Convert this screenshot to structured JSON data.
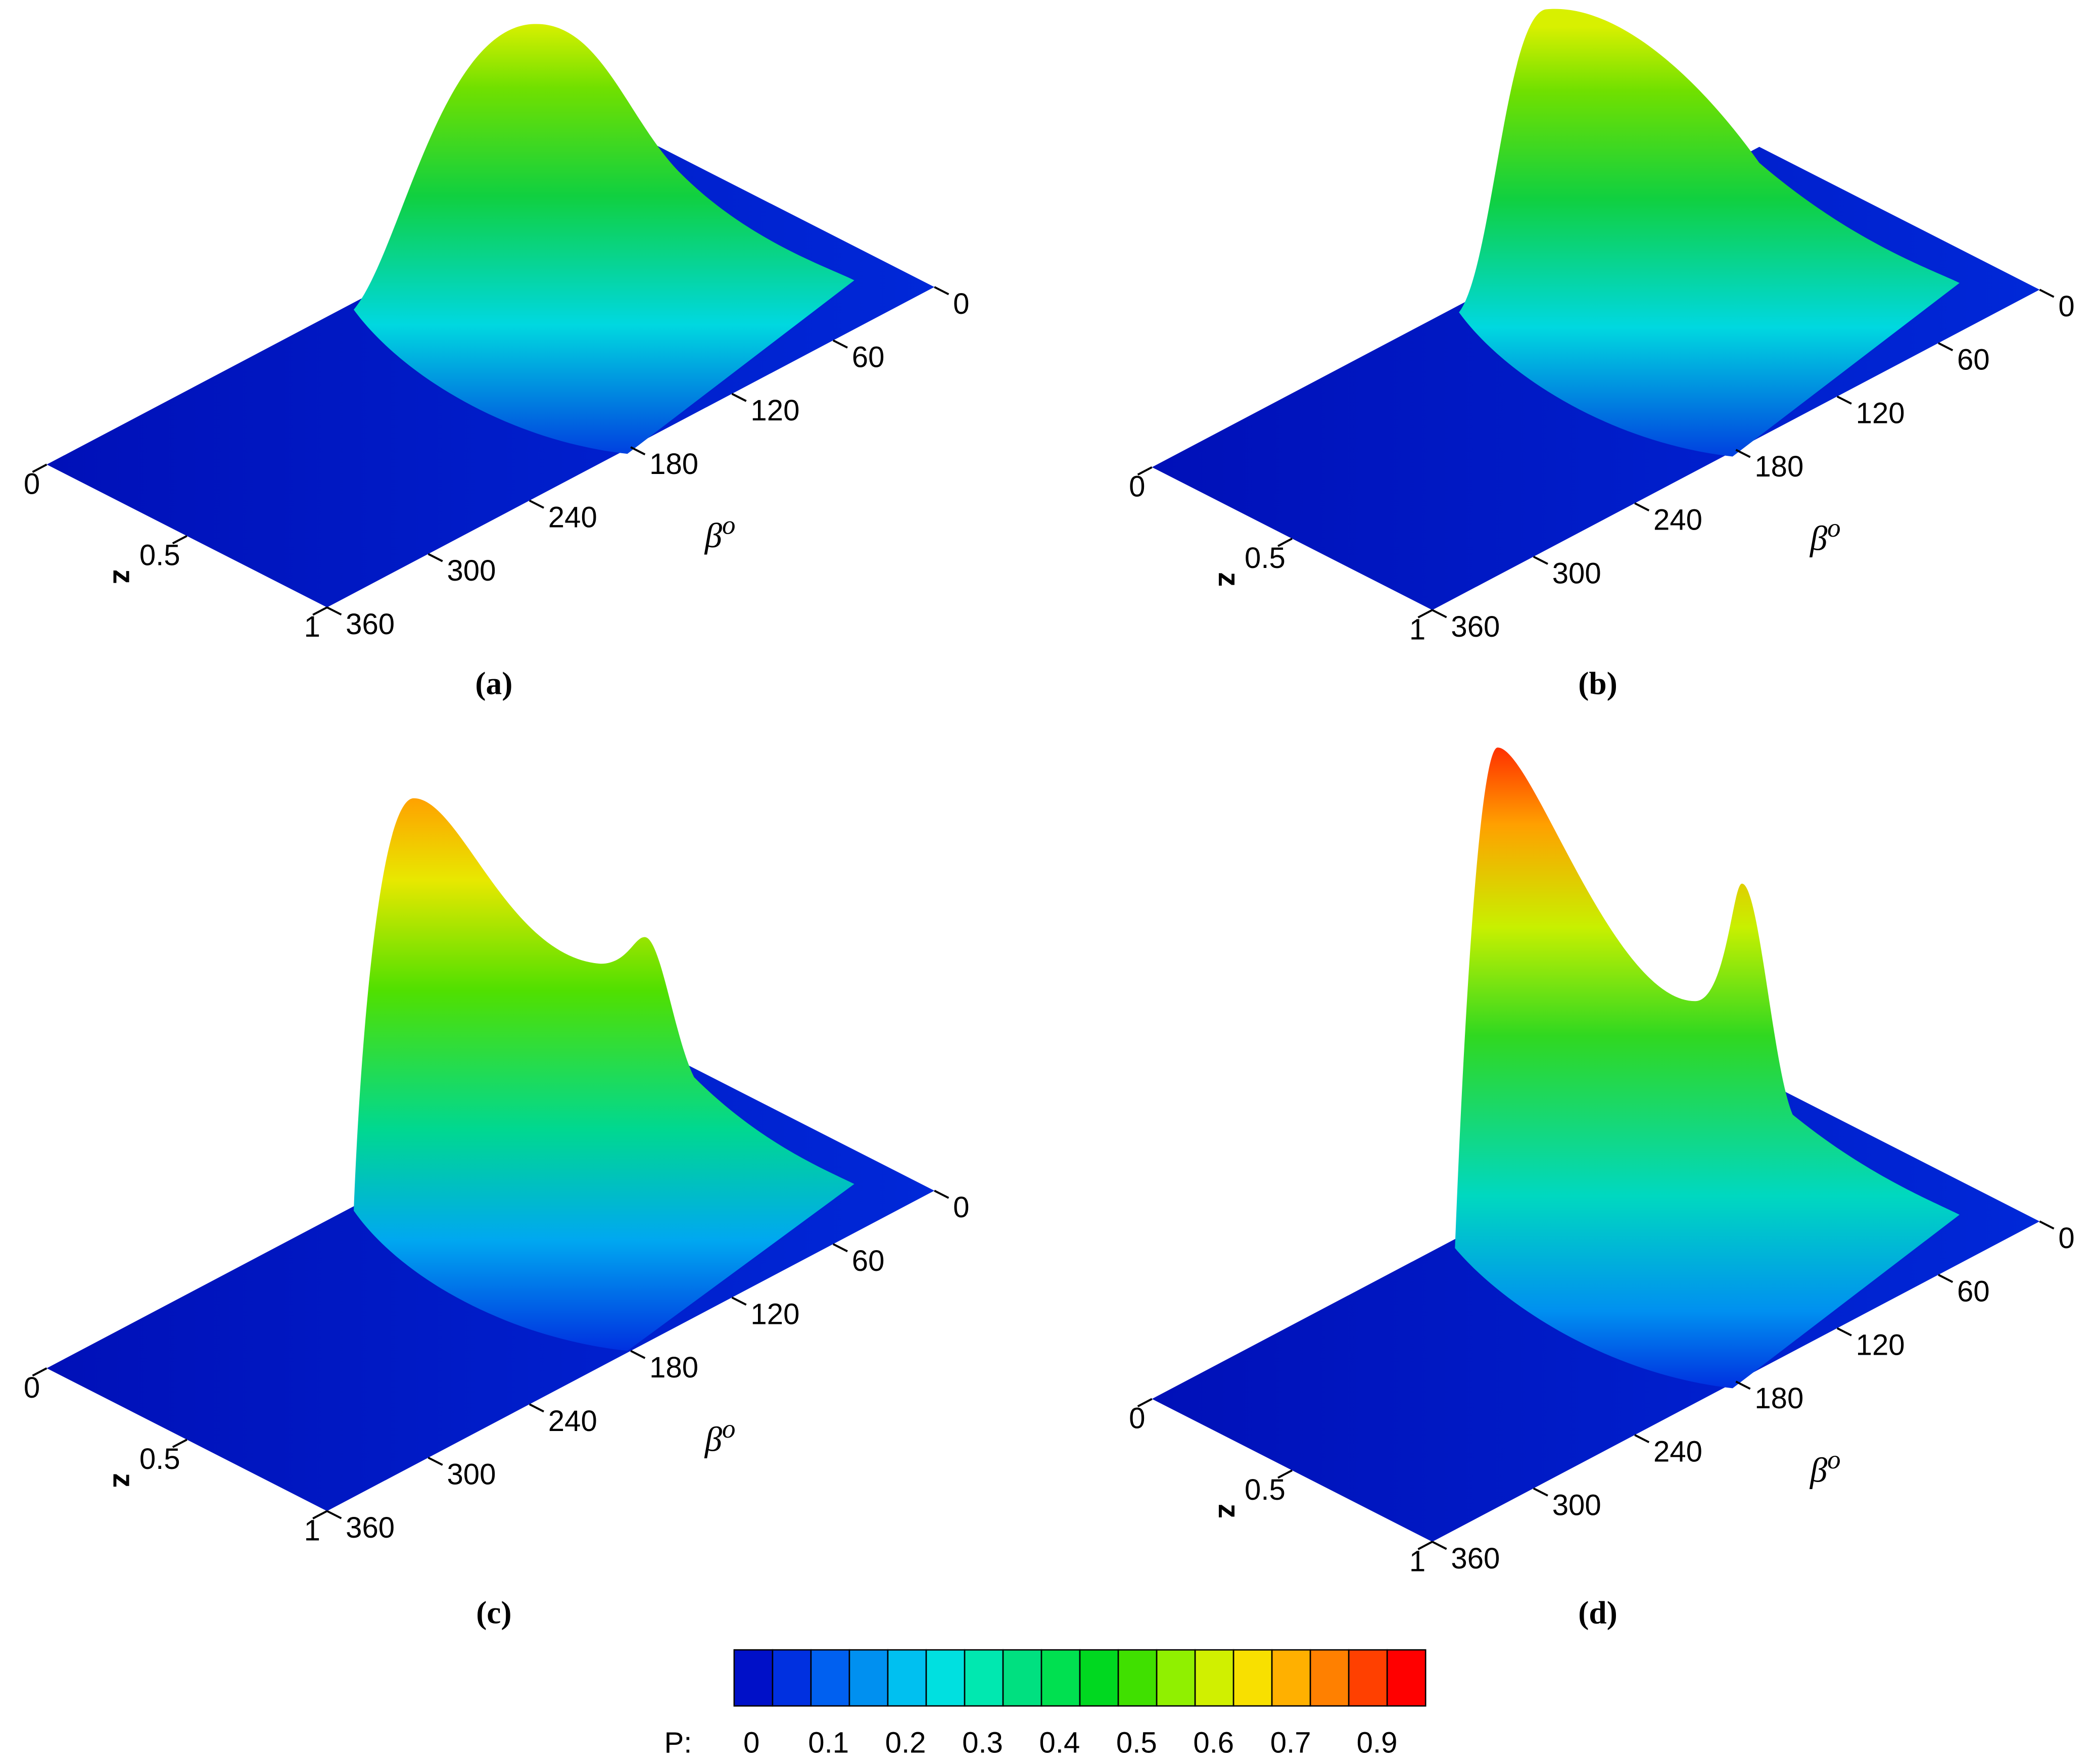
{
  "chart_data": [
    {
      "type": "surface",
      "label": "(a)",
      "xlabel": "β",
      "xlabel_sup": "o",
      "ylabel": "z",
      "xlim": [
        0,
        360
      ],
      "xticks": [
        0,
        60,
        120,
        180,
        240,
        300,
        360
      ],
      "ylim": [
        0,
        1
      ],
      "yticks": [
        0,
        0.5,
        1
      ]
    },
    {
      "type": "surface",
      "label": "(b)",
      "xlabel": "β",
      "xlabel_sup": "o",
      "ylabel": "z",
      "xlim": [
        0,
        360
      ],
      "xticks": [
        0,
        60,
        120,
        180,
        240,
        300,
        360
      ],
      "ylim": [
        0,
        1
      ],
      "yticks": [
        0,
        0.5,
        1
      ]
    },
    {
      "type": "surface",
      "label": "(c)",
      "xlabel": "β",
      "xlabel_sup": "o",
      "ylabel": "z",
      "xlim": [
        0,
        360
      ],
      "xticks": [
        0,
        60,
        120,
        180,
        240,
        300,
        360
      ],
      "ylim": [
        0,
        1
      ],
      "yticks": [
        0,
        0.5,
        1
      ]
    },
    {
      "type": "surface",
      "label": "(d)",
      "xlabel": "β",
      "xlabel_sup": "o",
      "ylabel": "z",
      "xlim": [
        0,
        360
      ],
      "xticks": [
        0,
        60,
        120,
        180,
        240,
        300,
        360
      ],
      "ylim": [
        0,
        1
      ],
      "yticks": [
        0,
        0.5,
        1
      ]
    }
  ],
  "colorbar": {
    "label": "P:",
    "ticks": [
      0,
      0.1,
      0.2,
      0.3,
      0.4,
      0.5,
      0.6,
      0.7,
      0.9
    ],
    "colors": [
      "#0010c8",
      "#0030e0",
      "#0060f0",
      "#0090f0",
      "#00c0f0",
      "#00e0e0",
      "#00e8b0",
      "#00e080",
      "#00e050",
      "#00d820",
      "#40e000",
      "#90f000",
      "#d0f000",
      "#f8e000",
      "#ffb000",
      "#ff8000",
      "#ff4000",
      "#ff0000"
    ]
  }
}
